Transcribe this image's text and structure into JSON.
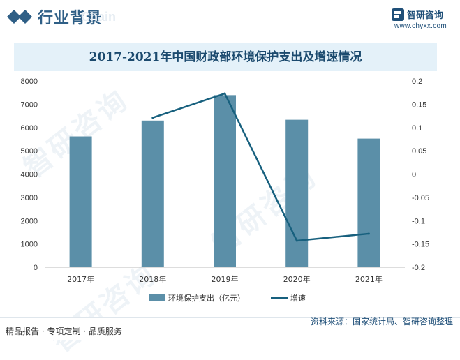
{
  "header": {
    "section_title": "行业背景",
    "ghost_text": "Chain"
  },
  "brand": {
    "name": "智研咨询",
    "url": "www.chyxx.com"
  },
  "watermark_text": "智研咨询",
  "chart_data": {
    "type": "bar",
    "title": "2017-2021年中国财政部环境保护支出及增速情况",
    "categories": [
      "2017年",
      "2018年",
      "2019年",
      "2020年",
      "2021年"
    ],
    "series": [
      {
        "name": "环境保护支出（亿元）",
        "type": "bar",
        "axis": "left",
        "values": [
          5617,
          6298,
          7390,
          6333,
          5525
        ]
      },
      {
        "name": "增速",
        "type": "line",
        "axis": "right",
        "values": [
          null,
          0.121,
          0.173,
          -0.143,
          -0.128
        ]
      }
    ],
    "ylim_left": [
      0,
      8000
    ],
    "yticks_left": [
      "0",
      "1000",
      "2000",
      "3000",
      "4000",
      "5000",
      "6000",
      "7000",
      "8000"
    ],
    "ylim_right": [
      -0.2,
      0.2
    ],
    "yticks_right": [
      "-0.2",
      "-0.15",
      "-0.1",
      "-0.05",
      "0",
      "0.05",
      "0.1",
      "0.15",
      "0.2"
    ],
    "grid": false,
    "legend_position": "bottom",
    "colors": {
      "bar": "#5b8fa8",
      "line": "#17607e"
    }
  },
  "footer": {
    "left_text": "精品报告 · 专项定制 · 品质服务",
    "source": "资料来源：国家统计局、智研咨询整理"
  }
}
